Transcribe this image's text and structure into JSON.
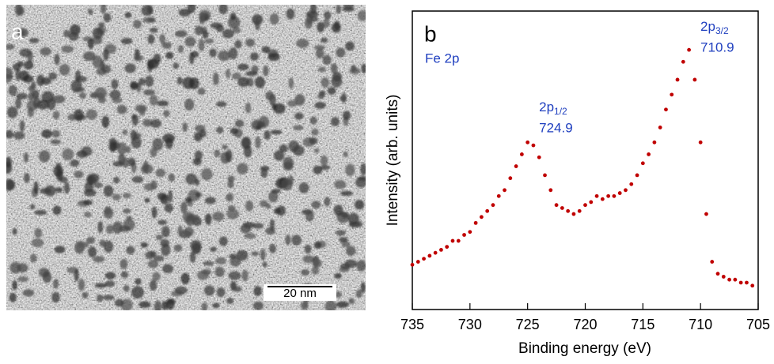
{
  "image_panel": {
    "label": "a",
    "scale_bar": "20 nm"
  },
  "chart_data": {
    "type": "scatter",
    "panel_label": "b",
    "title": "Fe 2p",
    "x_label": "Binding energy (eV)",
    "y_label": "Intensity (arb. units)",
    "xlim": [
      735,
      705
    ],
    "xticks": [
      735,
      730,
      725,
      720,
      715,
      710,
      705
    ],
    "ylim": [
      0,
      100
    ],
    "color": "#c00000",
    "x": [
      735,
      734.5,
      734,
      733.5,
      733,
      732.5,
      732,
      731.5,
      731,
      730.5,
      730,
      729.5,
      729,
      728.5,
      728,
      727.5,
      727,
      726.5,
      726,
      725.5,
      725,
      724.5,
      724,
      723.5,
      723,
      722.5,
      722,
      721.5,
      721,
      720.5,
      720,
      719.5,
      719,
      718.5,
      718,
      717.5,
      717,
      716.5,
      716,
      715.5,
      715,
      714.5,
      714,
      713.5,
      713,
      712.5,
      712,
      711.5,
      711,
      710.5,
      710,
      709.5,
      709,
      708.5,
      708,
      707.5,
      707,
      706.5,
      706,
      705.5
    ],
    "values": [
      15,
      16,
      17,
      18,
      19,
      20,
      21,
      23,
      23,
      25,
      26,
      29,
      31,
      33,
      35,
      38,
      40,
      44,
      48,
      52,
      56,
      55,
      51,
      45,
      40,
      35,
      34,
      33,
      32,
      33,
      35,
      36,
      38,
      37,
      38,
      38,
      39,
      40,
      42,
      45,
      49,
      52,
      56,
      61,
      67,
      72,
      77,
      83,
      87,
      77,
      56,
      32,
      16,
      12,
      11,
      10,
      10,
      9,
      9,
      8
    ],
    "annotations": [
      {
        "label": "2p",
        "subscript": "1/2",
        "x": 724.9
      },
      {
        "label": "2p",
        "subscript": "3/2",
        "x": 710.9
      }
    ]
  }
}
